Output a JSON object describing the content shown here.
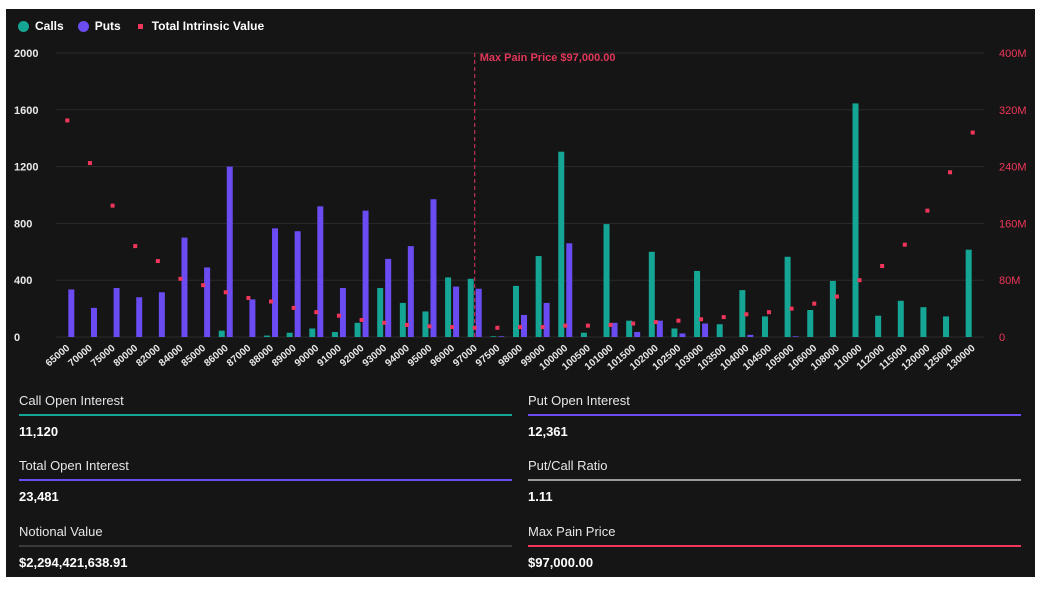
{
  "legend": {
    "calls": "Calls",
    "puts": "Puts",
    "intrinsic": "Total Intrinsic Value"
  },
  "colors": {
    "calls": "#14a595",
    "puts": "#6a4cf2",
    "intrinsic": "#f0365a",
    "max_pain_line": "#e0365a",
    "axis_text": "#e8e8e8",
    "right_axis_text": "#f0365a"
  },
  "chart_data": {
    "type": "bar",
    "categories": [
      "65000",
      "70000",
      "75000",
      "80000",
      "82000",
      "84000",
      "85000",
      "86000",
      "87000",
      "88000",
      "89000",
      "90000",
      "91000",
      "92000",
      "93000",
      "94000",
      "95000",
      "96000",
      "97000",
      "97500",
      "98000",
      "99000",
      "100000",
      "100500",
      "101000",
      "101500",
      "102000",
      "102500",
      "103000",
      "103500",
      "104000",
      "104500",
      "105000",
      "106000",
      "108000",
      "110000",
      "112000",
      "115000",
      "120000",
      "125000",
      "130000"
    ],
    "series": [
      {
        "name": "Calls",
        "axis": "left",
        "kind": "bar",
        "values": [
          0,
          0,
          0,
          0,
          0,
          0,
          0,
          45,
          0,
          10,
          30,
          60,
          35,
          100,
          345,
          240,
          180,
          420,
          410,
          5,
          360,
          570,
          1305,
          30,
          795,
          115,
          600,
          60,
          465,
          90,
          330,
          145,
          565,
          190,
          395,
          1645,
          150,
          255,
          210,
          145,
          615
        ]
      },
      {
        "name": "Puts",
        "axis": "left",
        "kind": "bar",
        "values": [
          335,
          205,
          345,
          280,
          315,
          700,
          490,
          1200,
          265,
          765,
          745,
          920,
          345,
          890,
          550,
          640,
          970,
          355,
          340,
          5,
          155,
          240,
          660,
          0,
          100,
          35,
          115,
          25,
          95,
          0,
          15,
          0,
          5,
          0,
          0,
          0,
          0,
          0,
          0,
          0,
          0
        ]
      },
      {
        "name": "Total Intrinsic Value",
        "axis": "right",
        "kind": "scatter",
        "values": [
          305,
          245,
          185,
          128,
          107,
          82,
          73,
          63,
          55,
          50,
          41,
          35,
          30,
          24,
          20,
          17,
          15,
          14,
          13,
          13,
          14,
          14,
          16,
          16,
          17,
          19,
          21,
          23,
          25,
          28,
          32,
          35,
          40,
          47,
          57,
          80,
          100,
          130,
          178,
          232,
          288
        ]
      }
    ],
    "left_axis": {
      "ylim": [
        0,
        2000
      ],
      "ticks": [
        "0",
        "400",
        "800",
        "1200",
        "1600",
        "2000"
      ]
    },
    "right_axis": {
      "ylim": [
        0,
        400
      ],
      "ticks": [
        "0",
        "80M",
        "160M",
        "240M",
        "320M",
        "400M"
      ],
      "unit": "M"
    },
    "annotation": {
      "label": "Max Pain Price $97,000.00",
      "category": "97000"
    }
  },
  "stats": [
    {
      "label": "Call Open Interest",
      "value": "11,120",
      "color": "#14a595"
    },
    {
      "label": "Put Open Interest",
      "value": "12,361",
      "color": "#6a4cf2"
    },
    {
      "label": "Total Open Interest",
      "value": "23,481",
      "color": "#6a4cf2"
    },
    {
      "label": "Put/Call Ratio",
      "value": "1.11",
      "color": "#9a9a9a"
    },
    {
      "label": "Notional Value",
      "value": "$2,294,421,638.91",
      "color": "#3a3a3a"
    },
    {
      "label": "Max Pain Price",
      "value": "$97,000.00",
      "color": "#f0365a"
    }
  ]
}
